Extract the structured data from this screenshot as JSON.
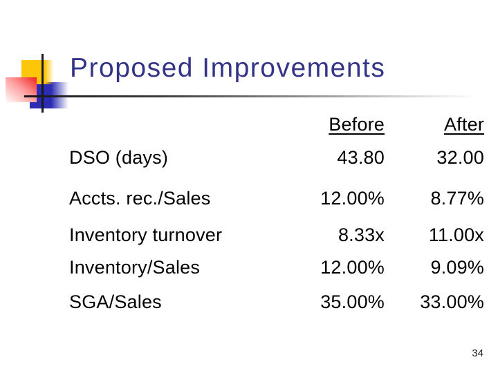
{
  "slide": {
    "title": "Proposed Improvements",
    "page_number": "34"
  },
  "table": {
    "headers": {
      "before": "Before",
      "after": "After"
    },
    "rows": [
      {
        "metric": "DSO (days)",
        "before": "43.80",
        "after": "32.00"
      },
      {
        "metric": "Accts. rec./Sales",
        "before": "12.00%",
        "after": "8.77%"
      },
      {
        "metric": "Inventory turnover",
        "before": "8.33x",
        "after": "11.00x"
      },
      {
        "metric": "Inventory/Sales",
        "before": "12.00%",
        "after": "9.09%"
      },
      {
        "metric": "SGA/Sales",
        "before": "35.00%",
        "after": "33.00%"
      }
    ]
  },
  "colors": {
    "title_text": "#333388",
    "body_text": "#000000",
    "deco_yellow": "#fdc608",
    "deco_blue": "#2b2bb4",
    "deco_red": "#ee2222"
  }
}
